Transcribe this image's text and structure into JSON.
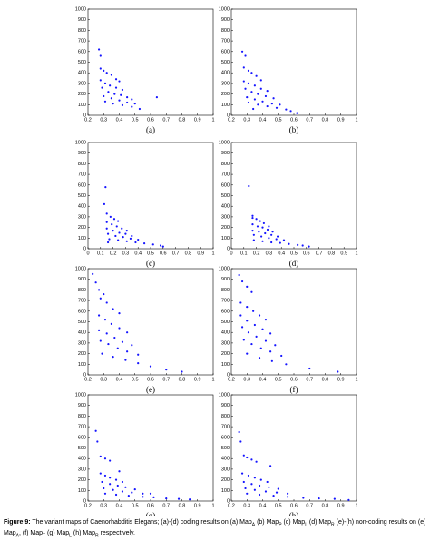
{
  "chart_data": [
    {
      "type": "scatter",
      "label": "(a)",
      "color": "#1414ff",
      "xlim": [
        0.2,
        1
      ],
      "ylim": [
        0,
        1000
      ],
      "xticks": [
        0.2,
        0.3,
        0.4,
        0.5,
        0.6,
        0.7,
        0.8,
        0.9,
        1
      ],
      "yticks": [
        0,
        100,
        200,
        300,
        400,
        500,
        600,
        700,
        800,
        900,
        1000
      ],
      "x": [
        0.27,
        0.28,
        0.28,
        0.3,
        0.32,
        0.35,
        0.38,
        0.4,
        0.28,
        0.31,
        0.34,
        0.38,
        0.42,
        0.29,
        0.33,
        0.37,
        0.41,
        0.45,
        0.48,
        0.3,
        0.35,
        0.4,
        0.45,
        0.5,
        0.31,
        0.36,
        0.42,
        0.48,
        0.53,
        0.64
      ],
      "y": [
        620,
        560,
        440,
        420,
        400,
        380,
        340,
        320,
        330,
        300,
        280,
        260,
        240,
        260,
        220,
        200,
        190,
        170,
        150,
        180,
        160,
        140,
        120,
        110,
        130,
        110,
        95,
        80,
        60,
        170
      ]
    },
    {
      "type": "scatter",
      "label": "(b)",
      "color": "#1414ff",
      "xlim": [
        0.2,
        1
      ],
      "ylim": [
        0,
        1000
      ],
      "xticks": [
        0.2,
        0.3,
        0.4,
        0.5,
        0.6,
        0.7,
        0.8,
        0.9,
        1
      ],
      "yticks": [
        0,
        100,
        200,
        300,
        400,
        500,
        600,
        700,
        800,
        900,
        1000
      ],
      "x": [
        0.27,
        0.29,
        0.28,
        0.31,
        0.33,
        0.36,
        0.39,
        0.28,
        0.31,
        0.35,
        0.39,
        0.43,
        0.29,
        0.33,
        0.37,
        0.42,
        0.47,
        0.3,
        0.35,
        0.4,
        0.46,
        0.51,
        0.31,
        0.37,
        0.43,
        0.49,
        0.55,
        0.58,
        0.62,
        0.34
      ],
      "y": [
        600,
        560,
        450,
        420,
        400,
        370,
        330,
        320,
        300,
        280,
        250,
        230,
        250,
        220,
        200,
        180,
        160,
        170,
        150,
        130,
        110,
        100,
        120,
        100,
        85,
        70,
        55,
        40,
        20,
        60
      ]
    },
    {
      "type": "scatter",
      "label": "(c)",
      "color": "#1414ff",
      "xlim": [
        0,
        1
      ],
      "ylim": [
        0,
        1000
      ],
      "xticks": [
        0,
        0.1,
        0.2,
        0.3,
        0.4,
        0.5,
        0.6,
        0.7,
        0.8,
        0.9,
        1
      ],
      "yticks": [
        0,
        100,
        200,
        300,
        400,
        500,
        600,
        700,
        800,
        900,
        1000
      ],
      "x": [
        0.14,
        0.13,
        0.15,
        0.18,
        0.21,
        0.24,
        0.15,
        0.19,
        0.23,
        0.27,
        0.31,
        0.15,
        0.2,
        0.25,
        0.3,
        0.35,
        0.16,
        0.22,
        0.28,
        0.34,
        0.4,
        0.17,
        0.24,
        0.31,
        0.38,
        0.45,
        0.52,
        0.58,
        0.6,
        0.16
      ],
      "y": [
        580,
        420,
        330,
        300,
        280,
        260,
        250,
        230,
        210,
        190,
        170,
        190,
        170,
        150,
        140,
        120,
        140,
        120,
        110,
        95,
        85,
        90,
        80,
        70,
        60,
        50,
        40,
        30,
        20,
        60
      ]
    },
    {
      "type": "scatter",
      "label": "(d)",
      "color": "#1414ff",
      "xlim": [
        0,
        1
      ],
      "ylim": [
        0,
        1000
      ],
      "xticks": [
        0,
        0.1,
        0.2,
        0.3,
        0.4,
        0.5,
        0.6,
        0.7,
        0.8,
        0.9,
        1
      ],
      "yticks": [
        0,
        100,
        200,
        300,
        400,
        500,
        600,
        700,
        800,
        900,
        1000
      ],
      "x": [
        0.14,
        0.17,
        0.17,
        0.2,
        0.23,
        0.26,
        0.17,
        0.21,
        0.25,
        0.29,
        0.33,
        0.17,
        0.22,
        0.27,
        0.32,
        0.37,
        0.18,
        0.24,
        0.3,
        0.36,
        0.42,
        0.18,
        0.25,
        0.32,
        0.39,
        0.46,
        0.53,
        0.57,
        0.62,
        0.3
      ],
      "y": [
        590,
        310,
        290,
        280,
        260,
        240,
        230,
        210,
        200,
        180,
        160,
        170,
        160,
        145,
        130,
        115,
        130,
        115,
        100,
        90,
        80,
        80,
        70,
        60,
        55,
        45,
        35,
        30,
        20,
        210
      ]
    },
    {
      "type": "scatter",
      "label": "(e)",
      "color": "#1414ff",
      "xlim": [
        0.2,
        1
      ],
      "ylim": [
        0,
        1000
      ],
      "xticks": [
        0.2,
        0.3,
        0.4,
        0.5,
        0.6,
        0.7,
        0.8,
        0.9,
        1
      ],
      "yticks": [
        0,
        100,
        200,
        300,
        400,
        500,
        600,
        700,
        800,
        900,
        1000
      ],
      "x": [
        0.23,
        0.25,
        0.27,
        0.3,
        0.28,
        0.32,
        0.36,
        0.4,
        0.27,
        0.31,
        0.35,
        0.4,
        0.45,
        0.27,
        0.32,
        0.37,
        0.42,
        0.48,
        0.28,
        0.33,
        0.39,
        0.45,
        0.52,
        0.29,
        0.36,
        0.44,
        0.52,
        0.6,
        0.7,
        0.8
      ],
      "y": [
        950,
        870,
        800,
        760,
        720,
        680,
        620,
        580,
        560,
        520,
        480,
        440,
        400,
        420,
        390,
        350,
        310,
        280,
        320,
        290,
        250,
        220,
        190,
        200,
        170,
        140,
        110,
        80,
        50,
        30
      ]
    },
    {
      "type": "scatter",
      "label": "(f)",
      "color": "#1414ff",
      "xlim": [
        0.2,
        1
      ],
      "ylim": [
        0,
        1000
      ],
      "xticks": [
        0.2,
        0.3,
        0.4,
        0.5,
        0.6,
        0.7,
        0.8,
        0.9,
        1
      ],
      "yticks": [
        0,
        100,
        200,
        300,
        400,
        500,
        600,
        700,
        800,
        900,
        1000
      ],
      "x": [
        0.25,
        0.27,
        0.3,
        0.33,
        0.26,
        0.3,
        0.34,
        0.38,
        0.42,
        0.26,
        0.3,
        0.35,
        0.4,
        0.45,
        0.27,
        0.31,
        0.36,
        0.42,
        0.48,
        0.28,
        0.33,
        0.39,
        0.45,
        0.52,
        0.3,
        0.38,
        0.46,
        0.55,
        0.7,
        0.88
      ],
      "y": [
        940,
        880,
        830,
        780,
        680,
        640,
        600,
        560,
        520,
        560,
        510,
        470,
        430,
        390,
        450,
        400,
        360,
        320,
        280,
        330,
        290,
        250,
        220,
        180,
        200,
        160,
        130,
        100,
        60,
        30
      ]
    },
    {
      "type": "scatter",
      "label": "(g)",
      "color": "#1414ff",
      "xlim": [
        0.2,
        1
      ],
      "ylim": [
        0,
        1000
      ],
      "xticks": [
        0.2,
        0.3,
        0.4,
        0.5,
        0.6,
        0.7,
        0.8,
        0.9,
        1
      ],
      "yticks": [
        0,
        100,
        200,
        300,
        400,
        500,
        600,
        700,
        800,
        900,
        1000
      ],
      "x": [
        0.25,
        0.26,
        0.28,
        0.31,
        0.34,
        0.28,
        0.31,
        0.34,
        0.38,
        0.42,
        0.29,
        0.34,
        0.39,
        0.44,
        0.5,
        0.3,
        0.36,
        0.42,
        0.48,
        0.55,
        0.31,
        0.38,
        0.46,
        0.55,
        0.62,
        0.7,
        0.78,
        0.85,
        0.6,
        0.4
      ],
      "y": [
        660,
        560,
        420,
        400,
        380,
        260,
        240,
        220,
        200,
        180,
        180,
        160,
        145,
        130,
        110,
        120,
        105,
        90,
        80,
        70,
        70,
        60,
        50,
        40,
        35,
        25,
        20,
        15,
        70,
        280
      ]
    },
    {
      "type": "scatter",
      "label": "(h)",
      "color": "#1414ff",
      "xlim": [
        0.2,
        1
      ],
      "ylim": [
        0,
        1000
      ],
      "xticks": [
        0.2,
        0.3,
        0.4,
        0.5,
        0.6,
        0.7,
        0.8,
        0.9,
        1
      ],
      "yticks": [
        0,
        100,
        200,
        300,
        400,
        500,
        600,
        700,
        800,
        900,
        1000
      ],
      "x": [
        0.25,
        0.26,
        0.28,
        0.3,
        0.33,
        0.36,
        0.27,
        0.31,
        0.35,
        0.39,
        0.43,
        0.28,
        0.33,
        0.38,
        0.44,
        0.5,
        0.29,
        0.35,
        0.42,
        0.49,
        0.56,
        0.3,
        0.38,
        0.47,
        0.56,
        0.66,
        0.76,
        0.86,
        0.95,
        0.45
      ],
      "y": [
        650,
        560,
        430,
        410,
        390,
        370,
        260,
        240,
        220,
        200,
        180,
        180,
        160,
        145,
        130,
        115,
        120,
        105,
        90,
        80,
        70,
        70,
        60,
        50,
        40,
        30,
        25,
        20,
        10,
        330
      ]
    }
  ],
  "caption": {
    "label": "Figure 9:",
    "segments": [
      {
        "text": " The variant maps of Caenorhabditis Elegans; (a)-(d) coding results on (a) Map"
      },
      {
        "sub": "A"
      },
      {
        "text": " (b) Map"
      },
      {
        "sub": "P"
      },
      {
        "text": " (c) Map"
      },
      {
        "sub": "L"
      },
      {
        "text": " (d) Map"
      },
      {
        "sub": "R"
      },
      {
        "text": " (e)-(h) non-coding results on (e) Map"
      },
      {
        "sub": "A"
      },
      {
        "text": ", (f) Map"
      },
      {
        "sub": "T"
      },
      {
        "text": " (g) Map"
      },
      {
        "sub": "L"
      },
      {
        "text": " (h) Map"
      },
      {
        "sub": "R"
      },
      {
        "text": " respectively."
      }
    ]
  }
}
